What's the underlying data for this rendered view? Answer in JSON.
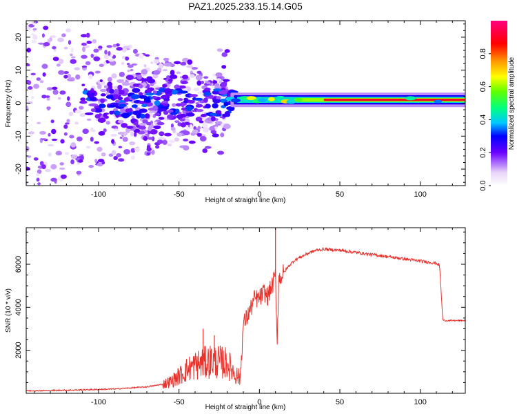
{
  "title": "PAZ1.2025.233.15.14.G05",
  "colors": {
    "snr_line": "#e8322c",
    "spec_bright": "#ffffff",
    "spec_low": "#d7b7f2",
    "spec_mid": "#6a00ff",
    "axis": "#000000",
    "background": "#ffffff"
  },
  "chart_data": [
    {
      "type": "heatmap",
      "name": "spectrogram",
      "xlabel": "Height of straight line (km)",
      "ylabel": "Frequency (Hz)",
      "xlim": [
        -145,
        128
      ],
      "ylim": [
        -25,
        25
      ],
      "xticks": [
        -100,
        -50,
        0,
        50,
        100
      ],
      "xtick_labels": [
        "-100",
        "-50",
        "0",
        "50",
        "100"
      ],
      "yticks": [
        -20,
        -10,
        0,
        10,
        20
      ],
      "ytick_labels": [
        "-20",
        "-10",
        "0",
        "10",
        "20"
      ],
      "grid": false,
      "colorbar": {
        "label": "Normalized spectral amplitude",
        "range": [
          0,
          1
        ],
        "ticks": [
          0.0,
          0.2,
          0.4,
          0.6,
          0.8
        ],
        "tick_labels": [
          "0.0",
          "0.2",
          "0.4",
          "0.6",
          "0.8"
        ],
        "stops": [
          {
            "v": 0.0,
            "c": "#ffffff"
          },
          {
            "v": 0.08,
            "c": "#e8d4f8"
          },
          {
            "v": 0.2,
            "c": "#6a00ff"
          },
          {
            "v": 0.3,
            "c": "#0000ff"
          },
          {
            "v": 0.38,
            "c": "#00c8ff"
          },
          {
            "v": 0.47,
            "c": "#00ff80"
          },
          {
            "v": 0.57,
            "c": "#60ff00"
          },
          {
            "v": 0.66,
            "c": "#ffff00"
          },
          {
            "v": 0.76,
            "c": "#ff9000"
          },
          {
            "v": 0.86,
            "c": "#ff0000"
          },
          {
            "v": 1.0,
            "c": "#ff0080"
          }
        ]
      },
      "main_tone_hz": 1,
      "scatter_speckle_region": {
        "x": [
          -145,
          -20
        ],
        "freq_spread_hz": 25
      }
    },
    {
      "type": "line",
      "name": "snr",
      "xlabel": "Height of straight line (km)",
      "ylabel": "SNR (10 * v/v)",
      "xlim": [
        -145,
        128
      ],
      "ylim": [
        0,
        7700
      ],
      "xticks": [
        -100,
        -50,
        0,
        50,
        100
      ],
      "xtick_labels": [
        "-100",
        "-50",
        "0",
        "50",
        "100"
      ],
      "yticks": [
        2000,
        4000,
        6000
      ],
      "ytick_labels": [
        "2000",
        "4000",
        "6000"
      ],
      "grid": false,
      "series": [
        {
          "name": "SNR",
          "x": [
            -145,
            -130,
            -110,
            -90,
            -70,
            -60,
            -55,
            -50,
            -45,
            -40,
            -35,
            -30,
            -25,
            -20,
            -15,
            -12,
            -10,
            -8,
            -5,
            -3,
            0,
            3,
            5,
            8,
            10,
            11,
            12,
            15,
            18,
            22,
            26,
            30,
            35,
            40,
            50,
            60,
            70,
            80,
            90,
            100,
            110,
            112,
            114,
            116,
            120,
            128
          ],
          "y": [
            120,
            130,
            160,
            200,
            300,
            420,
            550,
            800,
            1100,
            1300,
            1400,
            1500,
            1450,
            1400,
            900,
            700,
            3200,
            3500,
            4000,
            4400,
            4400,
            4700,
            4500,
            5000,
            5500,
            2300,
            5300,
            5600,
            5900,
            6200,
            6350,
            6500,
            6650,
            6700,
            6650,
            6550,
            6450,
            6350,
            6250,
            6150,
            6050,
            5950,
            3400,
            3380,
            3380,
            3380
          ]
        }
      ],
      "spikes": [
        {
          "x": 10,
          "y": 7650
        },
        {
          "x": 11,
          "y": 2300
        },
        {
          "x": -35,
          "y": 3000
        },
        {
          "x": -28,
          "y": 2700
        }
      ]
    }
  ]
}
